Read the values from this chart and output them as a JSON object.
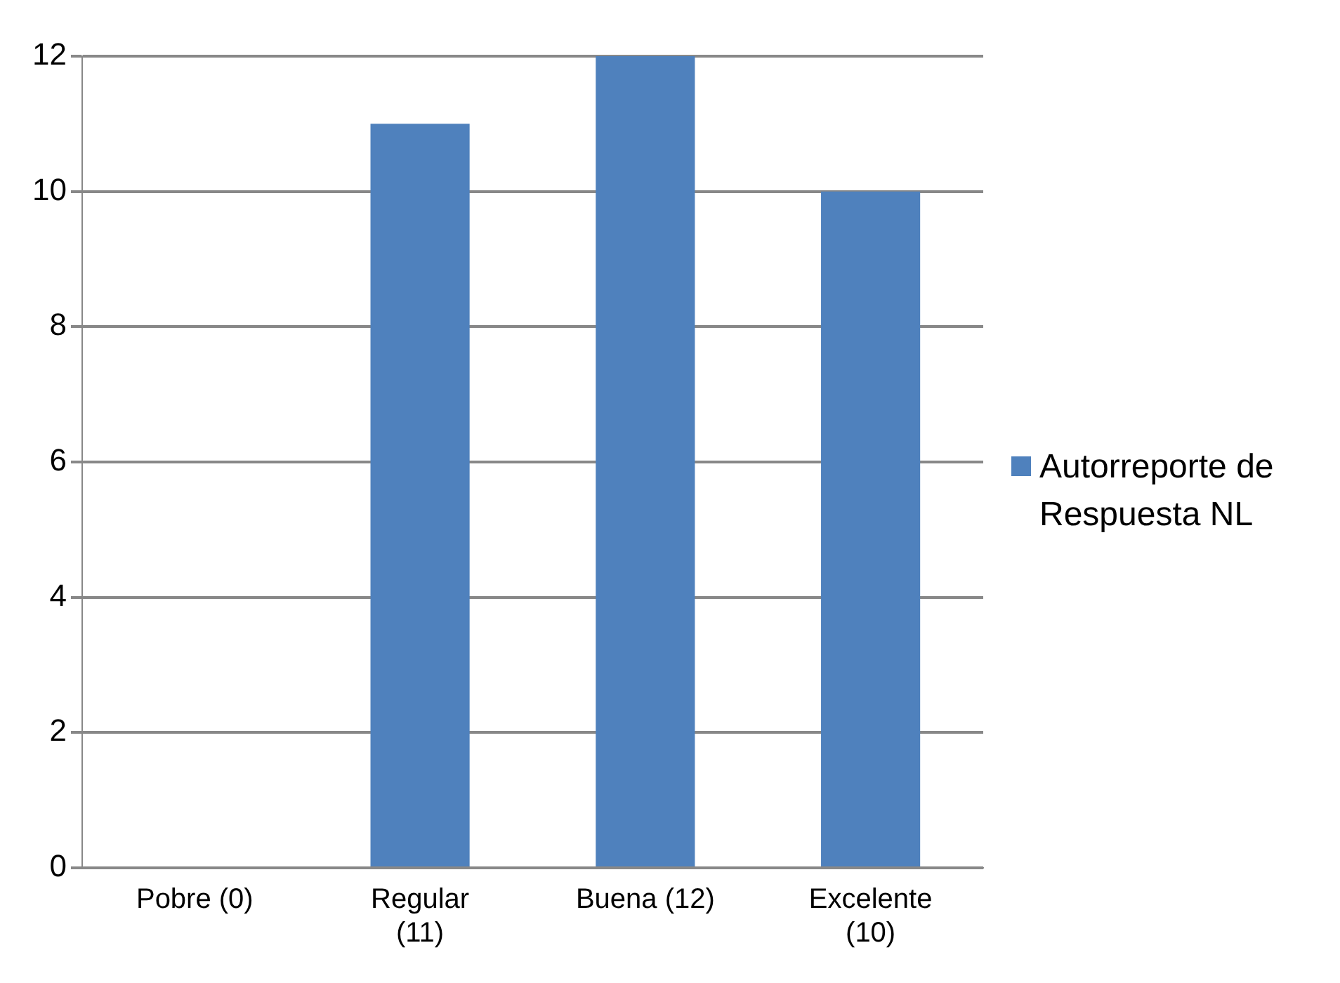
{
  "chart_data": {
    "type": "bar",
    "categories": [
      "Pobre (0)",
      "Regular (11)",
      "Buena (12)",
      "Excelente (10)"
    ],
    "series": [
      {
        "name": "Autorreporte de Respuesta NL",
        "color": "#4f81bd",
        "values": [
          0,
          11,
          12,
          10
        ]
      }
    ],
    "ylim": [
      0,
      12
    ],
    "yticks": [
      0,
      2,
      4,
      6,
      8,
      10,
      12
    ],
    "grid": "y",
    "legend": "right"
  }
}
